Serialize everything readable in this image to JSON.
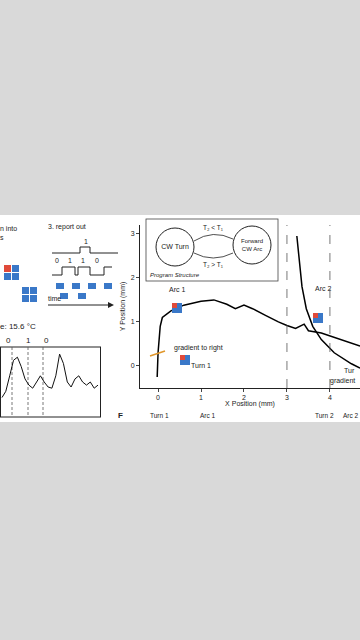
{
  "left_panel": {
    "texts": [
      "n into",
      "s",
      "3. report out"
    ],
    "bit_top": "1",
    "bits": [
      "0",
      "1",
      "1",
      "0"
    ],
    "time_label": "time",
    "temp_label": "e: 15.6 °C",
    "trace_bits": [
      "0",
      "1",
      "0"
    ],
    "trace": [
      0.25,
      0.35,
      0.6,
      0.85,
      0.9,
      0.75,
      0.55,
      0.45,
      0.4,
      0.5,
      0.6,
      0.5,
      0.42,
      0.4,
      0.6,
      0.95,
      0.8,
      0.5,
      0.42,
      0.55,
      0.6,
      0.5,
      0.45,
      0.5,
      0.4,
      0.45
    ]
  },
  "inset": {
    "title": "Program Structure",
    "states": [
      "CW Turn",
      "Forward",
      "CW Arc"
    ],
    "transitions": [
      "T₂ < T₁",
      "T₂ > T₁"
    ]
  },
  "chart_data": {
    "type": "line",
    "xlabel": "X Position (mm)",
    "ylabel": "Y Position (mm)",
    "xlim": [
      -0.42,
      4.7
    ],
    "ylim": [
      -0.5,
      3.2
    ],
    "xticks": [
      0,
      1,
      2,
      3,
      4
    ],
    "yticks": [
      0,
      1,
      2,
      3
    ],
    "grid": false,
    "vlines": [
      3,
      4
    ],
    "series": [
      {
        "color": "#000000",
        "x": [
          -0.02,
          0.0,
          0.05,
          0.1,
          0.3,
          0.6,
          1.0,
          1.3,
          1.6,
          1.8,
          2.0,
          2.2,
          2.5,
          2.8,
          3.0,
          3.2,
          3.4,
          3.5,
          3.8,
          4.1,
          4.4,
          4.7
        ],
        "values": [
          -0.25,
          0.3,
          0.9,
          1.1,
          1.25,
          1.38,
          1.47,
          1.5,
          1.4,
          1.3,
          1.38,
          1.3,
          1.15,
          1.0,
          0.92,
          0.85,
          0.95,
          0.8,
          0.75,
          0.65,
          0.55,
          0.45
        ]
      },
      {
        "color": "#000000",
        "x": [
          3.23,
          3.28,
          3.35,
          3.45,
          3.6,
          3.8,
          4.1,
          4.5,
          4.7
        ],
        "values": [
          2.95,
          2.5,
          1.8,
          1.3,
          0.9,
          0.6,
          0.3,
          0.05,
          -0.05
        ]
      }
    ],
    "annotations": [
      {
        "text": "Arc 1",
        "x": 0.45,
        "y": 1.73
      },
      {
        "text": "Arc 2",
        "x": 3.85,
        "y": 1.77
      },
      {
        "text": "gradient to right",
        "x": 0.95,
        "y": 0.4
      },
      {
        "text": "Turn 1",
        "x": 1.0,
        "y": 0.0
      },
      {
        "text": "Tur",
        "x": 4.45,
        "y": -0.1
      },
      {
        "text": "gradient",
        "x": 4.3,
        "y": -0.35
      }
    ]
  },
  "panel_F": {
    "label": "F",
    "segments": [
      "Turn 1",
      "Arc 1",
      "Turn 2",
      "Arc 2"
    ]
  }
}
